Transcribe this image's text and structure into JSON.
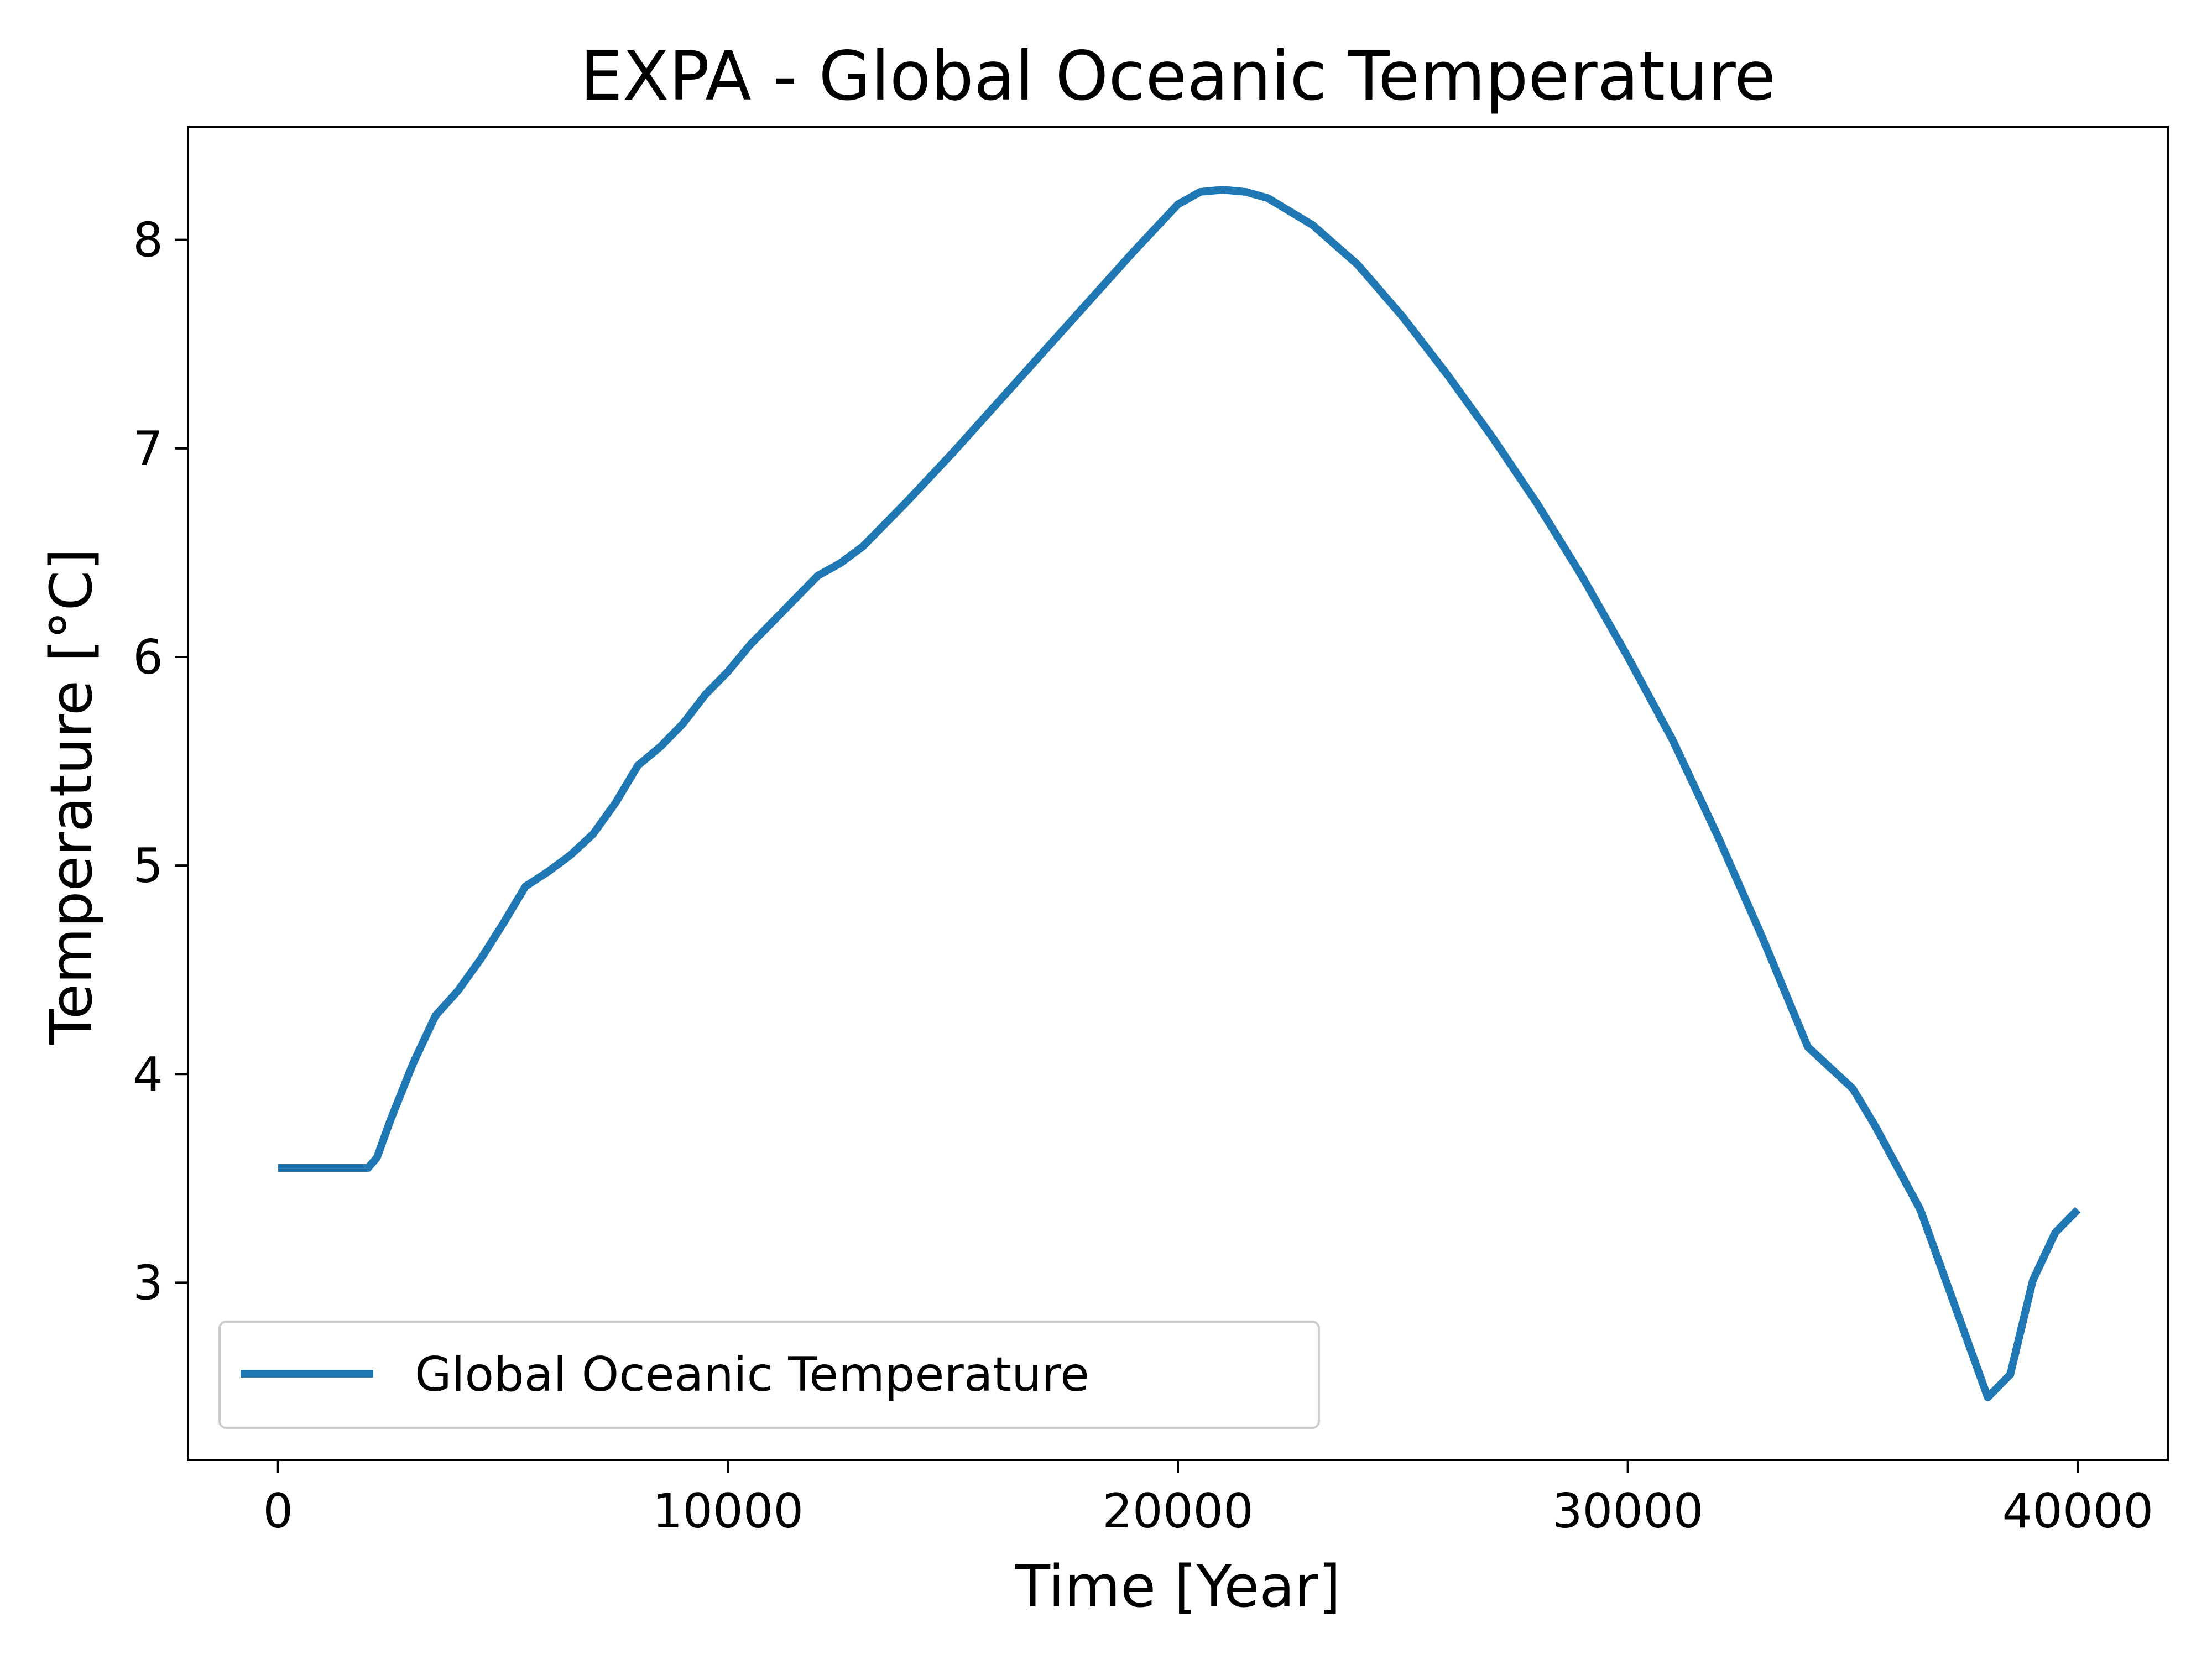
{
  "chart_data": {
    "type": "line",
    "title": "EXPA - Global Oceanic Temperature",
    "xlabel": "Time [Year]",
    "ylabel": "Temperature [°C]",
    "xlim": [
      -2000,
      42000
    ],
    "ylim": [
      2.15,
      8.54
    ],
    "xticks": [
      0,
      10000,
      20000,
      30000,
      40000
    ],
    "yticks": [
      3,
      4,
      5,
      6,
      7,
      8
    ],
    "grid": false,
    "legend_position": "lower-left",
    "series": [
      {
        "name": "Global Oceanic Temperature",
        "color": "#1f77b4",
        "x": [
          0,
          1000,
          2000,
          2200,
          2500,
          3000,
          3500,
          4000,
          4500,
          5000,
          5500,
          6000,
          6500,
          7000,
          7500,
          8000,
          8500,
          9000,
          9500,
          10000,
          10500,
          11000,
          11500,
          12000,
          12500,
          13000,
          14000,
          15000,
          16000,
          17000,
          18000,
          19000,
          20000,
          20500,
          21000,
          21500,
          22000,
          23000,
          24000,
          25000,
          26000,
          27000,
          28000,
          29000,
          30000,
          31000,
          32000,
          33000,
          34000,
          35000,
          35500,
          36000,
          36500,
          37000,
          37500,
          38000,
          38500,
          39000,
          39500,
          40000
        ],
        "y": [
          3.55,
          3.55,
          3.55,
          3.6,
          3.78,
          4.05,
          4.28,
          4.4,
          4.55,
          4.72,
          4.9,
          4.97,
          5.05,
          5.15,
          5.3,
          5.48,
          5.57,
          5.68,
          5.82,
          5.93,
          6.06,
          6.17,
          6.28,
          6.39,
          6.45,
          6.53,
          6.75,
          6.98,
          7.22,
          7.46,
          7.7,
          7.94,
          8.17,
          8.23,
          8.24,
          8.23,
          8.2,
          8.07,
          7.88,
          7.63,
          7.35,
          7.05,
          6.73,
          6.38,
          6.0,
          5.6,
          5.14,
          4.65,
          4.13,
          3.93,
          3.75,
          3.55,
          3.35,
          3.05,
          2.75,
          2.45,
          2.56,
          3.01,
          3.24,
          3.35
        ]
      }
    ]
  }
}
